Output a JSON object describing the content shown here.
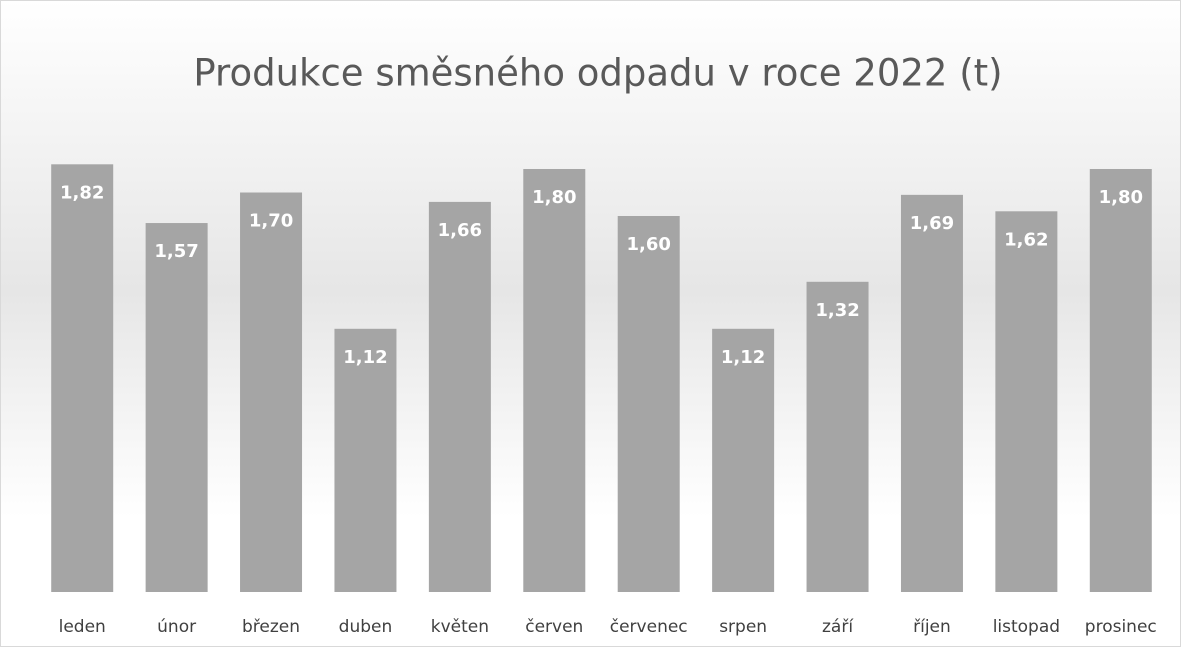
{
  "chart_data": {
    "type": "bar",
    "title": "Produkce směsného odpadu v roce 2022 (t)",
    "categories": [
      "leden",
      "únor",
      "březen",
      "duben",
      "květen",
      "červen",
      "červenec",
      "srpen",
      "září",
      "říjen",
      "listopad",
      "prosinec"
    ],
    "values": [
      1.82,
      1.57,
      1.7,
      1.12,
      1.66,
      1.8,
      1.6,
      1.12,
      1.32,
      1.69,
      1.62,
      1.8
    ],
    "value_labels": [
      "1,82",
      "1,57",
      "1,70",
      "1,12",
      "1,66",
      "1,80",
      "1,60",
      "1,12",
      "1,32",
      "1,69",
      "1,62",
      "1,80"
    ],
    "color": "#a5a5a5",
    "ylim": [
      0,
      2
    ]
  }
}
